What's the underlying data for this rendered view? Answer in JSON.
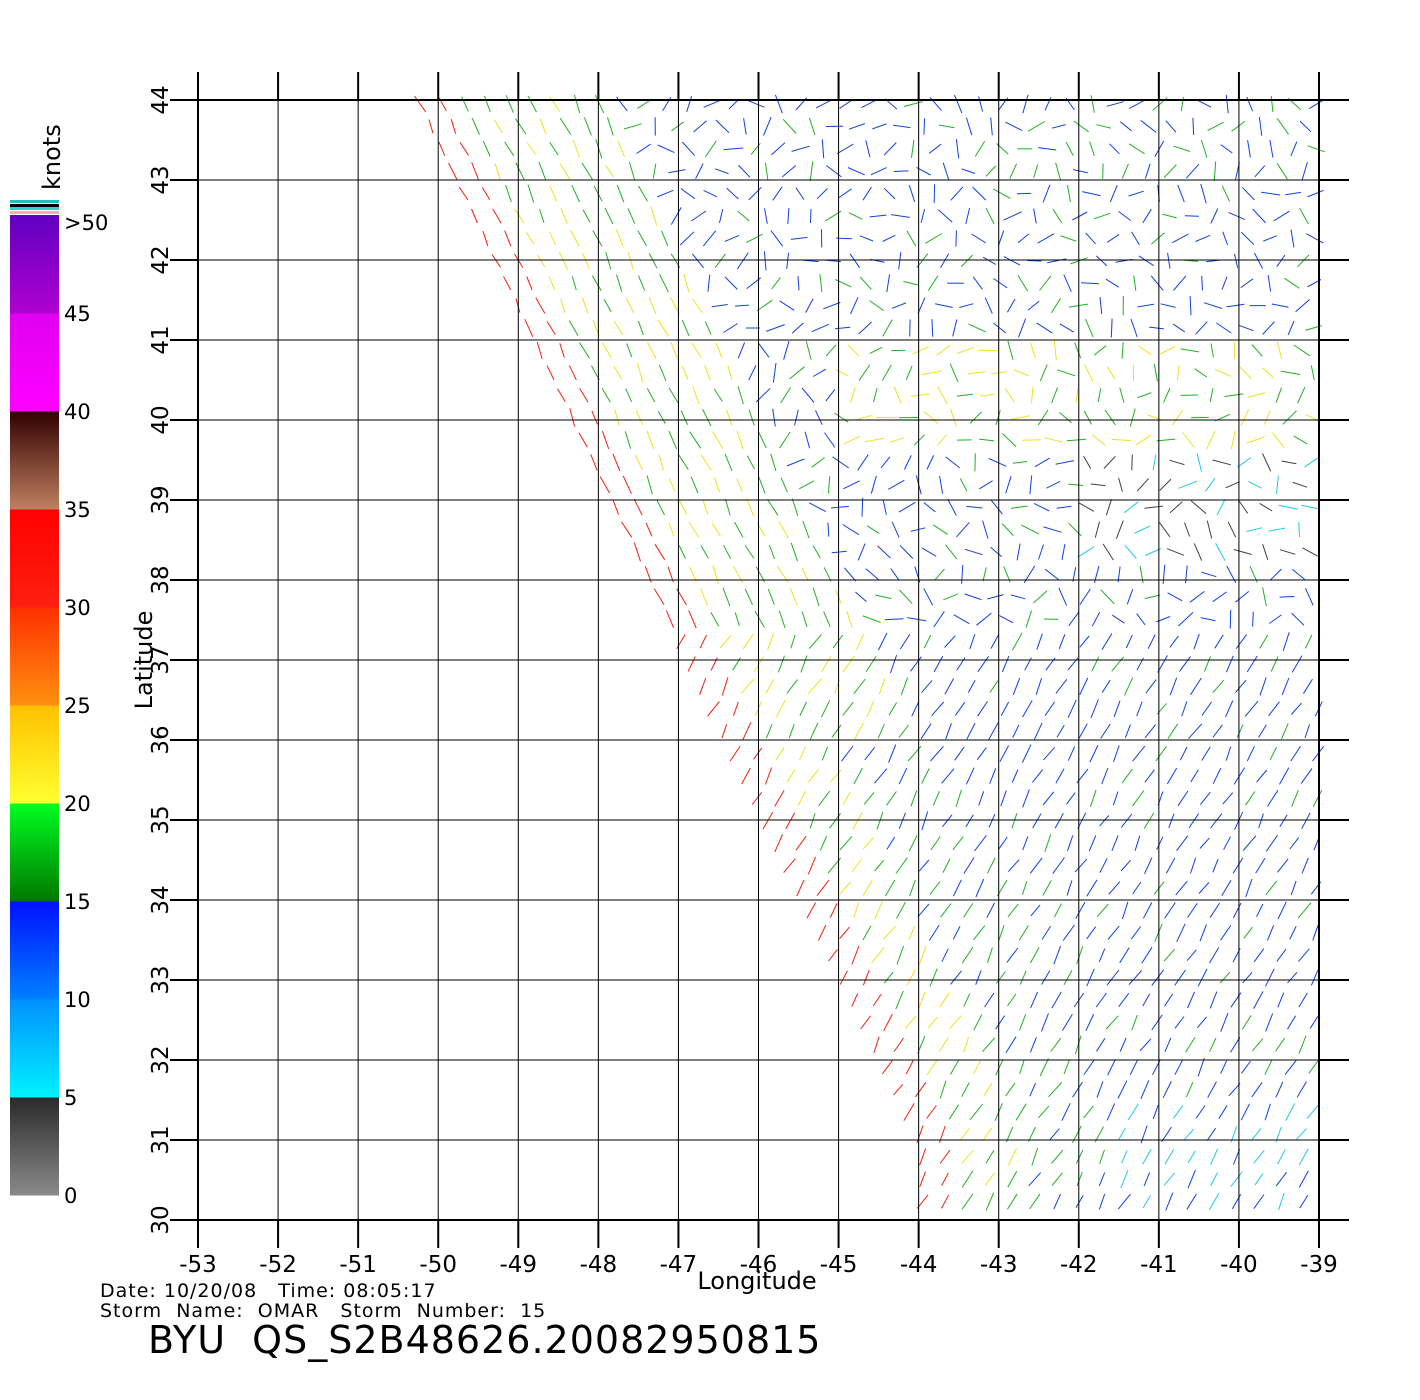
{
  "map": {
    "x_label": "Longitude",
    "y_label": "Latitude",
    "lon_ticks": [
      "-53",
      "-52",
      "-51",
      "-50",
      "-49",
      "-48",
      "-47",
      "-46",
      "-45",
      "-44",
      "-43",
      "-42",
      "-41",
      "-40",
      "-39"
    ],
    "lat_ticks": [
      "30",
      "31",
      "32",
      "33",
      "34",
      "35",
      "36",
      "37",
      "38",
      "39",
      "40",
      "41",
      "42",
      "43",
      "44"
    ],
    "lon_range": [
      -53,
      -39
    ],
    "lat_range": [
      30,
      44
    ],
    "grid": true
  },
  "colorbar": {
    "unit_label": "knots",
    "tick_labels": [
      "0",
      "5",
      "10",
      "15",
      "20",
      "25",
      "30",
      "35",
      "40",
      "45",
      ">50"
    ],
    "segments": [
      {
        "from": 0,
        "to": 5,
        "colors": [
          "#8a8a8a",
          "#2a2a2a"
        ]
      },
      {
        "from": 5,
        "to": 10,
        "colors": [
          "#00f2ff",
          "#0090ff"
        ]
      },
      {
        "from": 10,
        "to": 15,
        "colors": [
          "#0080ff",
          "#0010ff"
        ]
      },
      {
        "from": 15,
        "to": 20,
        "colors": [
          "#007800",
          "#00ff20"
        ]
      },
      {
        "from": 20,
        "to": 25,
        "colors": [
          "#ffff30",
          "#ffc000"
        ]
      },
      {
        "from": 25,
        "to": 30,
        "colors": [
          "#ff9010",
          "#ff3000"
        ]
      },
      {
        "from": 30,
        "to": 35,
        "colors": [
          "#ff2010",
          "#ff0000"
        ]
      },
      {
        "from": 35,
        "to": 40,
        "colors": [
          "#c08060",
          "#300000"
        ]
      },
      {
        "from": 40,
        "to": 45,
        "colors": [
          "#ff00ff",
          "#e000f0"
        ]
      },
      {
        "from": 45,
        "to": 50,
        "colors": [
          "#b000d0",
          "#6000c0"
        ]
      }
    ]
  },
  "swath": {
    "left_edge": [
      [
        -50.3,
        44
      ],
      [
        -44.0,
        31.0
      ],
      [
        -44.0,
        30
      ]
    ],
    "wind_regions": [
      {
        "name": "north-east blue",
        "color": "#1040e0"
      },
      {
        "name": "green band",
        "color": "#20b020"
      },
      {
        "name": "yellow band",
        "color": "#f0e020"
      },
      {
        "name": "red edge",
        "color": "#f02010"
      },
      {
        "name": "cyan low",
        "color": "#20c8f0"
      },
      {
        "name": "calm grey",
        "color": "#404040"
      }
    ]
  },
  "info": {
    "date_line": "Date: 10/20/08   Time: 08:05:17",
    "storm_line": "Storm  Name:  OMAR   Storm  Number:  15",
    "product_id": "BYU  QS_S2B48626.20082950815"
  }
}
